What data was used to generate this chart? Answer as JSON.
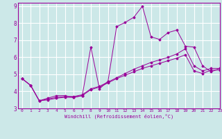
{
  "background_color": "#cce8e8",
  "grid_color": "#ffffff",
  "line_color": "#990099",
  "xlabel": "Windchill (Refroidissement éolien,°C)",
  "xlim": [
    -0.5,
    23
  ],
  "ylim": [
    3,
    9.2
  ],
  "yticks": [
    3,
    4,
    5,
    6,
    7,
    8,
    9
  ],
  "xticks": [
    0,
    1,
    2,
    3,
    4,
    5,
    6,
    7,
    8,
    9,
    10,
    11,
    12,
    13,
    14,
    15,
    16,
    17,
    18,
    19,
    20,
    21,
    22,
    23
  ],
  "series": [
    {
      "x": [
        0,
        1,
        2,
        3,
        4,
        5,
        6,
        7,
        8,
        9,
        10,
        11,
        12,
        13,
        14,
        15,
        16,
        17,
        18,
        19,
        20,
        21,
        22,
        23
      ],
      "y": [
        4.75,
        4.35,
        3.45,
        3.6,
        3.75,
        3.75,
        3.65,
        3.75,
        6.6,
        4.15,
        4.6,
        7.8,
        8.05,
        8.35,
        9.0,
        7.2,
        7.05,
        7.45,
        7.6,
        6.65,
        6.6,
        5.5,
        5.15,
        5.35
      ]
    },
    {
      "x": [
        0,
        1,
        2,
        3,
        4,
        5,
        6,
        7,
        8,
        9,
        10,
        11,
        12,
        13,
        14,
        15,
        16,
        17,
        18,
        19,
        20,
        21,
        22,
        23
      ],
      "y": [
        4.75,
        4.35,
        3.45,
        3.55,
        3.65,
        3.7,
        3.7,
        3.8,
        4.15,
        4.3,
        4.55,
        4.8,
        5.05,
        5.3,
        5.5,
        5.7,
        5.85,
        6.0,
        6.2,
        6.5,
        5.5,
        5.2,
        5.35,
        5.35
      ]
    },
    {
      "x": [
        0,
        1,
        2,
        3,
        4,
        5,
        6,
        7,
        8,
        9,
        10,
        11,
        12,
        13,
        14,
        15,
        16,
        17,
        18,
        19,
        20,
        21,
        22,
        23
      ],
      "y": [
        4.75,
        4.35,
        3.45,
        3.5,
        3.6,
        3.65,
        3.65,
        3.75,
        4.1,
        4.25,
        4.5,
        4.75,
        4.95,
        5.15,
        5.35,
        5.5,
        5.65,
        5.8,
        5.95,
        6.15,
        5.2,
        5.05,
        5.25,
        5.25
      ]
    }
  ]
}
